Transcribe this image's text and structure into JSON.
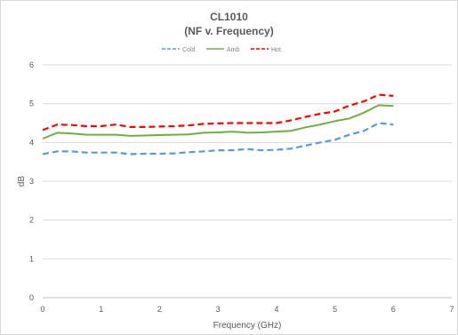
{
  "chart_data": {
    "type": "line",
    "title": "CL1010",
    "subtitle": "(NF v. Frequency)",
    "xlabel": "Frequency (GHz)",
    "ylabel": "dB",
    "xlim": [
      0,
      7
    ],
    "ylim": [
      0,
      6
    ],
    "x_ticks": [
      "0",
      "1",
      "2",
      "3",
      "4",
      "5",
      "6",
      "7"
    ],
    "y_ticks": [
      "0",
      "1",
      "2",
      "3",
      "4",
      "5",
      "6"
    ],
    "grid": true,
    "legend_position": "top",
    "series": [
      {
        "name": "Cold",
        "color": "#5b9bd5",
        "dash": "dashed",
        "x": [
          0,
          0.25,
          0.5,
          0.75,
          1.0,
          1.25,
          1.5,
          1.75,
          2.0,
          2.25,
          2.5,
          2.75,
          3.0,
          3.25,
          3.5,
          3.75,
          4.0,
          4.25,
          4.5,
          4.75,
          5.0,
          5.25,
          5.5,
          5.75,
          6.0
        ],
        "values": [
          3.7,
          3.77,
          3.77,
          3.74,
          3.74,
          3.74,
          3.7,
          3.71,
          3.71,
          3.72,
          3.75,
          3.77,
          3.8,
          3.8,
          3.83,
          3.8,
          3.81,
          3.84,
          3.92,
          4.0,
          4.07,
          4.2,
          4.3,
          4.5,
          4.46
        ]
      },
      {
        "name": "Amb",
        "color": "#70ad47",
        "dash": "solid",
        "x": [
          0,
          0.25,
          0.5,
          0.75,
          1.0,
          1.25,
          1.5,
          1.75,
          2.0,
          2.25,
          2.5,
          2.75,
          3.0,
          3.25,
          3.5,
          3.75,
          4.0,
          4.25,
          4.5,
          4.75,
          5.0,
          5.25,
          5.5,
          5.75,
          6.0
        ],
        "values": [
          4.1,
          4.25,
          4.23,
          4.2,
          4.2,
          4.2,
          4.17,
          4.18,
          4.19,
          4.2,
          4.21,
          4.25,
          4.26,
          4.28,
          4.25,
          4.26,
          4.28,
          4.3,
          4.39,
          4.46,
          4.55,
          4.62,
          4.77,
          4.96,
          4.94
        ]
      },
      {
        "name": "Hot",
        "color": "#ff0000",
        "dash": "dashed",
        "x": [
          0,
          0.25,
          0.5,
          0.75,
          1.0,
          1.25,
          1.5,
          1.75,
          2.0,
          2.25,
          2.5,
          2.75,
          3.0,
          3.25,
          3.5,
          3.75,
          4.0,
          4.25,
          4.5,
          4.75,
          5.0,
          5.25,
          5.5,
          5.75,
          6.0
        ],
        "values": [
          4.32,
          4.46,
          4.45,
          4.42,
          4.42,
          4.46,
          4.4,
          4.4,
          4.41,
          4.42,
          4.44,
          4.48,
          4.49,
          4.5,
          4.5,
          4.5,
          4.5,
          4.57,
          4.66,
          4.74,
          4.8,
          4.95,
          5.06,
          5.23,
          5.2
        ]
      }
    ]
  }
}
